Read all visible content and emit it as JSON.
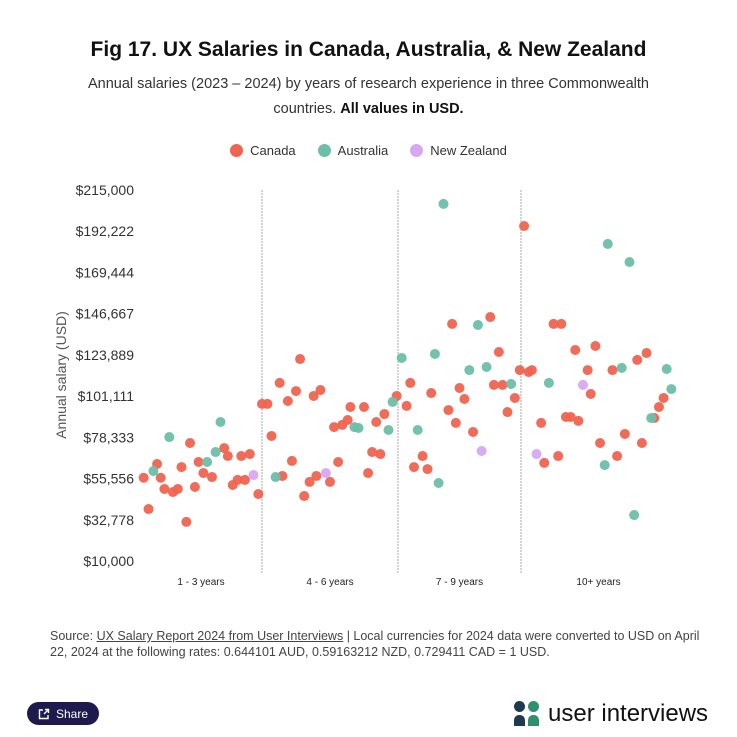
{
  "header": {
    "title": "Fig 17. UX Salaries in Canada, Australia, & New Zealand",
    "subtitle": "Annual salaries (2023 – 2024) by years of research experience in three Commonwealth countries.",
    "subtitle_bold": "All values in USD."
  },
  "chart_data": {
    "type": "scatter",
    "title": "Fig 17. UX Salaries in Canada, Australia, & New Zealand",
    "xlabel": "",
    "ylabel": "Annual salary (USD)",
    "categories": [
      "1 - 3 years",
      "4 - 6 years",
      "7 - 9 years",
      "10+ years"
    ],
    "yticks": [
      "$10,000",
      "$32,778",
      "$55,556",
      "$78,333",
      "$101,111",
      "$123,889",
      "$146,667",
      "$169,444",
      "$192,222",
      "$215,000"
    ],
    "ylim": [
      10000,
      215000
    ],
    "xlim": [
      0,
      4
    ],
    "x_note": "x is category index plus jitter fraction within the category",
    "legend_position": "top-center",
    "grid": false,
    "colors": {
      "Canada": "#ef6450",
      "Australia": "#6dbfaa",
      "New Zealand": "#d7a8f2"
    },
    "series": [
      {
        "name": "Canada",
        "points": [
          [
            0.03,
            56000
          ],
          [
            0.14,
            63600
          ],
          [
            0.17,
            56000
          ],
          [
            0.2,
            49800
          ],
          [
            0.27,
            48100
          ],
          [
            0.31,
            49800
          ],
          [
            0.07,
            38700
          ],
          [
            0.34,
            61900
          ],
          [
            0.38,
            31600
          ],
          [
            0.41,
            75200
          ],
          [
            0.45,
            50900
          ],
          [
            0.48,
            64700
          ],
          [
            0.52,
            58600
          ],
          [
            0.59,
            56400
          ],
          [
            0.69,
            72400
          ],
          [
            0.72,
            68000
          ],
          [
            0.83,
            68000
          ],
          [
            0.9,
            69100
          ],
          [
            0.76,
            52000
          ],
          [
            0.8,
            54800
          ],
          [
            0.86,
            54800
          ],
          [
            0.97,
            47000
          ],
          [
            1.0,
            96800
          ],
          [
            1.04,
            96800
          ],
          [
            1.07,
            79100
          ],
          [
            1.13,
            108400
          ],
          [
            1.19,
            98400
          ],
          [
            1.25,
            103900
          ],
          [
            1.28,
            121600
          ],
          [
            1.38,
            101200
          ],
          [
            1.43,
            104500
          ],
          [
            1.15,
            57000
          ],
          [
            1.22,
            65300
          ],
          [
            1.35,
            53700
          ],
          [
            1.31,
            45900
          ],
          [
            1.4,
            57000
          ],
          [
            1.5,
            53700
          ],
          [
            1.56,
            64700
          ],
          [
            1.53,
            84000
          ],
          [
            1.59,
            85200
          ],
          [
            1.63,
            87900
          ],
          [
            1.65,
            95100
          ],
          [
            1.75,
            95100
          ],
          [
            1.81,
            70200
          ],
          [
            1.87,
            69100
          ],
          [
            1.78,
            58600
          ],
          [
            1.84,
            86800
          ],
          [
            1.9,
            91200
          ],
          [
            1.99,
            101200
          ],
          [
            2.44,
            141000
          ],
          [
            2.75,
            144800
          ],
          [
            2.82,
            125500
          ],
          [
            2.99,
            115500
          ],
          [
            2.1,
            108400
          ],
          [
            2.78,
            107300
          ],
          [
            2.85,
            107300
          ],
          [
            2.07,
            95700
          ],
          [
            2.27,
            102800
          ],
          [
            2.5,
            105600
          ],
          [
            2.54,
            99500
          ],
          [
            2.95,
            100100
          ],
          [
            2.41,
            93400
          ],
          [
            2.89,
            92300
          ],
          [
            2.47,
            86300
          ],
          [
            2.61,
            81300
          ],
          [
            2.2,
            68000
          ],
          [
            2.13,
            61900
          ],
          [
            2.24,
            60800
          ],
          [
            3.02,
            195100
          ],
          [
            3.21,
            141000
          ],
          [
            3.26,
            141000
          ],
          [
            3.35,
            126600
          ],
          [
            3.48,
            128800
          ],
          [
            3.81,
            124900
          ],
          [
            3.75,
            121100
          ],
          [
            3.05,
            114400
          ],
          [
            3.07,
            115500
          ],
          [
            3.43,
            115500
          ],
          [
            3.59,
            115500
          ],
          [
            3.45,
            102300
          ],
          [
            3.92,
            100100
          ],
          [
            3.13,
            86300
          ],
          [
            3.29,
            89600
          ],
          [
            3.32,
            89600
          ],
          [
            3.37,
            87400
          ],
          [
            3.89,
            95100
          ],
          [
            3.86,
            89000
          ],
          [
            3.15,
            64200
          ],
          [
            3.24,
            68000
          ],
          [
            3.51,
            75200
          ],
          [
            3.67,
            80200
          ],
          [
            3.78,
            75200
          ],
          [
            3.62,
            68000
          ]
        ]
      },
      {
        "name": "Australia",
        "points": [
          [
            0.11,
            59700
          ],
          [
            0.24,
            78500
          ],
          [
            0.55,
            64700
          ],
          [
            0.62,
            70200
          ],
          [
            0.66,
            86800
          ],
          [
            1.1,
            56400
          ],
          [
            1.68,
            84000
          ],
          [
            1.71,
            83500
          ],
          [
            1.93,
            82400
          ],
          [
            1.96,
            97900
          ],
          [
            2.37,
            207300
          ],
          [
            2.65,
            140400
          ],
          [
            2.03,
            122200
          ],
          [
            2.3,
            124400
          ],
          [
            2.58,
            115500
          ],
          [
            2.72,
            117200
          ],
          [
            2.92,
            107800
          ],
          [
            2.16,
            82400
          ],
          [
            2.33,
            53100
          ],
          [
            3.56,
            185200
          ],
          [
            3.7,
            175200
          ],
          [
            3.18,
            108400
          ],
          [
            3.65,
            116700
          ],
          [
            3.94,
            116100
          ],
          [
            3.97,
            105000
          ],
          [
            3.84,
            89000
          ],
          [
            3.54,
            63000
          ],
          [
            3.73,
            35400
          ]
        ]
      },
      {
        "name": "New Zealand",
        "points": [
          [
            0.93,
            57500
          ],
          [
            1.47,
            58600
          ],
          [
            2.68,
            70800
          ],
          [
            3.4,
            107300
          ],
          [
            3.1,
            69100
          ]
        ]
      }
    ]
  },
  "legend": [
    "Canada",
    "Australia",
    "New Zealand"
  ],
  "footer": {
    "source_label": "Source:",
    "source_link": "UX Salary Report 2024 from User Interviews",
    "source_rest": "| Local currencies for 2024 data were converted to USD on April 22, 2024 at the following rates: 0.644101 AUD, 0.59163212 NZD, 0.729411 CAD = 1 USD.",
    "share_label": "Share",
    "logo_text": "user interviews"
  }
}
